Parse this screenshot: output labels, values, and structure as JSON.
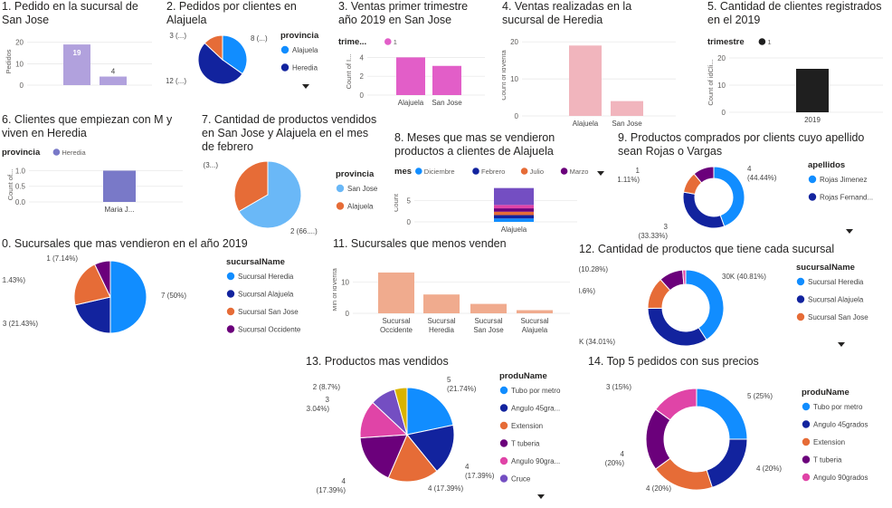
{
  "colors": {
    "blue": "#118dff",
    "navy": "#12239e",
    "orange": "#e66c37",
    "purple": "#6b007b",
    "pink": "#e044a7",
    "violet": "#744ec2",
    "gold": "#d9b300",
    "lavender": "#b1a1dd",
    "magenta": "#e25ec8",
    "salmon": "#f0ab8e",
    "lightpink": "#f1b5bd",
    "black": "#1f1f1f",
    "slate": "#7979c8",
    "lightblue": "#6ab8f7"
  },
  "panels": [
    {
      "id": "p1",
      "title": "1. Pedido en la sucursal de\nSan Jose"
    },
    {
      "id": "p2",
      "title": "2. Pedidos por clientes en\nAlajuela"
    },
    {
      "id": "p3",
      "title": "3. Ventas primer trimestre\naño 2019 en San Jose"
    },
    {
      "id": "p4",
      "title": "4. Ventas realizadas en la\nsucursal de Heredia"
    },
    {
      "id": "p5",
      "title": "5. Cantidad de clientes registrados\nen el 2019"
    },
    {
      "id": "p6",
      "title": "6. Clientes que empiezan con M y\nviven en Heredia"
    },
    {
      "id": "p7",
      "title": "7. Cantidad de productos vendidos\nen San Jose y Alajuela en el mes\nde febrero"
    },
    {
      "id": "p8",
      "title": "8. Meses que mas se vendieron\nproductos a clientes de Alajuela"
    },
    {
      "id": "p9",
      "title": "9. Productos comprados por clients cuyo apellido\nsean Rojas o Vargas"
    },
    {
      "id": "p0",
      "title": "0. Sucursales que mas vendieron en el año 2019"
    },
    {
      "id": "p11",
      "title": "11. Sucursales que menos venden"
    },
    {
      "id": "p12",
      "title": "12. Cantidad de productos que tiene cada sucursal"
    },
    {
      "id": "p13",
      "title": "13. Productos mas vendidos"
    },
    {
      "id": "p14",
      "title": "14. Top 5 pedidos con sus precios"
    }
  ],
  "chart_data": [
    {
      "id": "p1",
      "type": "bar",
      "ylabel": "Pedidos",
      "yticks": [
        "0",
        "10",
        "20"
      ],
      "ylim": [
        0,
        22
      ],
      "values": [
        19,
        4
      ],
      "data_labels": [
        "19",
        "4"
      ],
      "colors": [
        "#b1a1dd",
        "#b1a1dd"
      ]
    },
    {
      "id": "p2",
      "type": "pie",
      "legend_title": "provincia",
      "legend": [
        {
          "name": "Alajuela",
          "color": "#118dff"
        },
        {
          "name": "Heredia",
          "color": "#12239e"
        }
      ],
      "slices": [
        {
          "value": 8,
          "label": "8 (...)",
          "color": "#118dff"
        },
        {
          "value": 12,
          "label": "12 (...)",
          "color": "#12239e"
        },
        {
          "value": 3,
          "label": "3 (...)",
          "color": "#e66c37"
        }
      ]
    },
    {
      "id": "p3",
      "type": "bar",
      "legend_title": "trime...",
      "legend": [
        {
          "name": "1",
          "color": "#e25ec8"
        }
      ],
      "ylabel": "Count of I...",
      "yticks": [
        "0",
        "2",
        "4"
      ],
      "ylim": [
        0,
        5
      ],
      "categories": [
        "Alajuela",
        "San Jose"
      ],
      "values": [
        4,
        3.1
      ],
      "colors": [
        "#e25ec8",
        "#e25ec8"
      ]
    },
    {
      "id": "p4",
      "type": "bar",
      "ylabel": "Count of idVenta",
      "yticks": [
        "0",
        "10",
        "20"
      ],
      "ylim": [
        0,
        22
      ],
      "categories": [
        "Alajuela",
        "San Jose"
      ],
      "values": [
        19,
        4
      ],
      "colors": [
        "#f1b5bd",
        "#f1b5bd"
      ]
    },
    {
      "id": "p5",
      "type": "bar",
      "legend_title": "trimestre",
      "legend": [
        {
          "name": "1",
          "color": "#1f1f1f"
        }
      ],
      "ylabel": "Count of idCli...",
      "yticks": [
        "0",
        "10",
        "20"
      ],
      "ylim": [
        0,
        22
      ],
      "categories": [
        "2019"
      ],
      "values": [
        16
      ],
      "colors": [
        "#1f1f1f"
      ]
    },
    {
      "id": "p6",
      "type": "bar",
      "legend_title": "provincia",
      "legend": [
        {
          "name": "Heredia",
          "color": "#7979c8"
        }
      ],
      "ylabel": "Count of...",
      "yticks": [
        "0.0",
        "0.5",
        "1.0"
      ],
      "ylim": [
        0,
        1.1
      ],
      "categories": [
        "Maria J..."
      ],
      "values": [
        1
      ],
      "colors": [
        "#7979c8"
      ]
    },
    {
      "id": "p7",
      "type": "pie",
      "legend_title": "provincia",
      "legend": [
        {
          "name": "San Jose",
          "color": "#6ab8f7"
        },
        {
          "name": "Alajuela",
          "color": "#e66c37"
        }
      ],
      "slices": [
        {
          "value": 2,
          "label": "2 (66....)",
          "color": "#6ab8f7"
        },
        {
          "value": 1,
          "label": "1 (3...)",
          "color": "#e66c37"
        }
      ]
    },
    {
      "id": "p8",
      "type": "bar",
      "stacked": true,
      "legend_title": "mes",
      "legend": [
        {
          "name": "Diciembre",
          "color": "#118dff"
        },
        {
          "name": "Febrero",
          "color": "#12239e"
        },
        {
          "name": "Julio",
          "color": "#e66c37"
        },
        {
          "name": "Marzo",
          "color": "#6b007b"
        }
      ],
      "ylabel": "Count",
      "yticks": [
        "0",
        "5"
      ],
      "ylim": [
        0,
        9
      ],
      "categories": [
        "Alajuela"
      ],
      "series": [
        {
          "color": "#118dff",
          "value": 0.8
        },
        {
          "color": "#12239e",
          "value": 0.8
        },
        {
          "color": "#e66c37",
          "value": 0.8
        },
        {
          "color": "#6b007b",
          "value": 0.8
        },
        {
          "color": "#e044a7",
          "value": 0.8
        },
        {
          "color": "#744ec2",
          "value": 4
        }
      ]
    },
    {
      "id": "p9",
      "type": "donut",
      "legend_title": "apellidos",
      "legend": [
        {
          "name": "Rojas Jimenez",
          "color": "#118dff"
        },
        {
          "name": "Rojas Fernand...",
          "color": "#12239e"
        }
      ],
      "slices": [
        {
          "value": 4,
          "label": "4\n(44.44%)",
          "color": "#118dff"
        },
        {
          "value": 3,
          "label": "3\n(33.33%)",
          "color": "#12239e"
        },
        {
          "value": 1,
          "label": "1\n(11.11%)",
          "color": "#e66c37"
        },
        {
          "value": 1,
          "label": "",
          "color": "#6b007b"
        }
      ]
    },
    {
      "id": "p0",
      "type": "pie",
      "legend_title": "sucursalName",
      "legend": [
        {
          "name": "Sucursal Heredia",
          "color": "#118dff"
        },
        {
          "name": "Sucursal Alajuela",
          "color": "#12239e"
        },
        {
          "name": "Sucursal San Jose",
          "color": "#e66c37"
        },
        {
          "name": "Sucursal Occidente",
          "color": "#6b007b"
        }
      ],
      "slices": [
        {
          "value": 7,
          "label": "7 (50%)",
          "color": "#118dff"
        },
        {
          "value": 3,
          "label": "3 (21.43%)",
          "color": "#12239e"
        },
        {
          "value": 3,
          "label": "3 (21.43%)",
          "color": "#e66c37"
        },
        {
          "value": 1,
          "label": "1 (7.14%)",
          "color": "#6b007b"
        }
      ]
    },
    {
      "id": "p11",
      "type": "bar",
      "ylabel": "Min of idVenta",
      "yticks": [
        "0",
        "10"
      ],
      "ylim": [
        0,
        15
      ],
      "categories": [
        "Sucursal\nOccidente",
        "Sucursal\nHeredia",
        "Sucursal\nSan Jose",
        "Sucursal\nAlajuela"
      ],
      "values": [
        13,
        6,
        3,
        1
      ],
      "colors": [
        "#f0ab8e",
        "#f0ab8e",
        "#f0ab8e",
        "#f0ab8e"
      ]
    },
    {
      "id": "p12",
      "type": "donut",
      "legend_title": "sucursalName",
      "legend": [
        {
          "name": "Sucursal Heredia",
          "color": "#118dff"
        },
        {
          "name": "Sucursal Alajuela",
          "color": "#12239e"
        },
        {
          "name": "Sucursal San Jose",
          "color": "#e66c37"
        }
      ],
      "slices": [
        {
          "value": 40.81,
          "label": "30K (40.81%)",
          "color": "#118dff"
        },
        {
          "value": 34.01,
          "label": "25K (34.01%)",
          "color": "#12239e"
        },
        {
          "value": 13.6,
          "label": "10K (13.6%)",
          "color": "#e66c37"
        },
        {
          "value": 10.28,
          "label": "8K (10.28%)",
          "color": "#6b007b"
        },
        {
          "value": 1.3,
          "label": "",
          "color": "#e044a7"
        }
      ]
    },
    {
      "id": "p13",
      "type": "pie",
      "legend_title": "produName",
      "legend": [
        {
          "name": "Tubo por metro",
          "color": "#118dff"
        },
        {
          "name": "Angulo 45gra...",
          "color": "#12239e"
        },
        {
          "name": "Extension",
          "color": "#e66c37"
        },
        {
          "name": "T tuberia",
          "color": "#6b007b"
        },
        {
          "name": "Angulo 90gra...",
          "color": "#e044a7"
        },
        {
          "name": "Cruce",
          "color": "#744ec2"
        }
      ],
      "slices": [
        {
          "value": 5,
          "label": "5\n(21.74%)",
          "color": "#118dff"
        },
        {
          "value": 4,
          "label": "4\n(17.39%)",
          "color": "#12239e"
        },
        {
          "value": 4,
          "label": "4 (17.39%)",
          "color": "#e66c37"
        },
        {
          "value": 4,
          "label": "4\n(17.39%)",
          "color": "#6b007b"
        },
        {
          "value": 3,
          "label": "3\n(13.04%)",
          "color": "#e044a7"
        },
        {
          "value": 2,
          "label": "2 (8.7%)",
          "color": "#744ec2"
        },
        {
          "value": 1,
          "label": "",
          "color": "#d9b300"
        }
      ]
    },
    {
      "id": "p14",
      "type": "donut",
      "legend_title": "produName",
      "legend": [
        {
          "name": "Tubo por metro",
          "color": "#118dff"
        },
        {
          "name": "Angulo 45grados",
          "color": "#12239e"
        },
        {
          "name": "Extension",
          "color": "#e66c37"
        },
        {
          "name": "T tuberia",
          "color": "#6b007b"
        },
        {
          "name": "Angulo 90grados",
          "color": "#e044a7"
        }
      ],
      "slices": [
        {
          "value": 5,
          "label": "5 (25%)",
          "color": "#118dff"
        },
        {
          "value": 4,
          "label": "4 (20%)",
          "color": "#12239e"
        },
        {
          "value": 4,
          "label": "4 (20%)",
          "color": "#e66c37"
        },
        {
          "value": 4,
          "label": "4\n(20%)",
          "color": "#6b007b"
        },
        {
          "value": 3,
          "label": "3 (15%)",
          "color": "#e044a7"
        }
      ]
    }
  ]
}
